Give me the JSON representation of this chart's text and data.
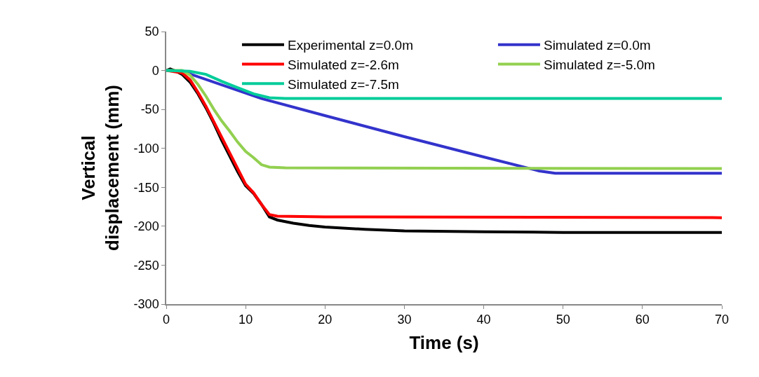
{
  "chart_data": {
    "type": "line",
    "xlabel": "Time (s)",
    "ylabel": "Vertical\ndisplacement (mm)",
    "xlim": [
      0,
      70
    ],
    "xticks": [
      0,
      10,
      20,
      30,
      40,
      50,
      60,
      70
    ],
    "ylim": [
      -300,
      50
    ],
    "yticks": [
      -300,
      -250,
      -200,
      -150,
      -100,
      -50,
      0,
      50
    ],
    "legend": "top",
    "marker": "none",
    "line_style": "solid",
    "series": [
      {
        "name": "Experimental z=0.0m",
        "color": "#000000",
        "x": [
          0,
          0.5,
          1,
          2,
          3,
          4,
          5,
          6,
          7,
          8,
          9,
          10,
          11,
          12,
          13,
          14,
          16,
          18,
          20,
          25,
          30,
          40,
          50,
          60,
          70
        ],
        "values": [
          0,
          2,
          0,
          -5,
          -15,
          -30,
          -48,
          -68,
          -90,
          -110,
          -130,
          -148,
          -158,
          -172,
          -188,
          -192,
          -196,
          -199,
          -201,
          -204,
          -206,
          -207,
          -208,
          -208,
          -208
        ]
      },
      {
        "name": "Simulated z=0.0m",
        "color": "#3333cc",
        "x": [
          0,
          2,
          12,
          20,
          30,
          40,
          47,
          49,
          70
        ],
        "values": [
          0,
          -1,
          -36,
          -58,
          -85,
          -111,
          -129,
          -132,
          -132
        ]
      },
      {
        "name": "Simulated z=-2.6m",
        "color": "#ff0000",
        "x": [
          0,
          2,
          3,
          4,
          5,
          6,
          7,
          8,
          9,
          10,
          11,
          12,
          13,
          14,
          20,
          70
        ],
        "values": [
          0,
          -3,
          -12,
          -28,
          -46,
          -66,
          -86,
          -106,
          -126,
          -146,
          -157,
          -172,
          -185,
          -187,
          -188,
          -189
        ]
      },
      {
        "name": "Simulated z=-5.0m",
        "color": "#92d050",
        "x": [
          0,
          2,
          3,
          4,
          5,
          6,
          7,
          8,
          9,
          10,
          11,
          12,
          13,
          15,
          70
        ],
        "values": [
          0,
          0,
          -6,
          -18,
          -33,
          -50,
          -65,
          -78,
          -92,
          -104,
          -112,
          -121,
          -124,
          -125,
          -126
        ]
      },
      {
        "name": "Simulated z=-7.5m",
        "color": "#00cc99",
        "x": [
          0,
          3,
          5,
          7,
          9,
          11,
          13,
          15,
          70
        ],
        "values": [
          0,
          -1,
          -5,
          -14,
          -22,
          -30,
          -35,
          -36,
          -36
        ]
      }
    ]
  }
}
